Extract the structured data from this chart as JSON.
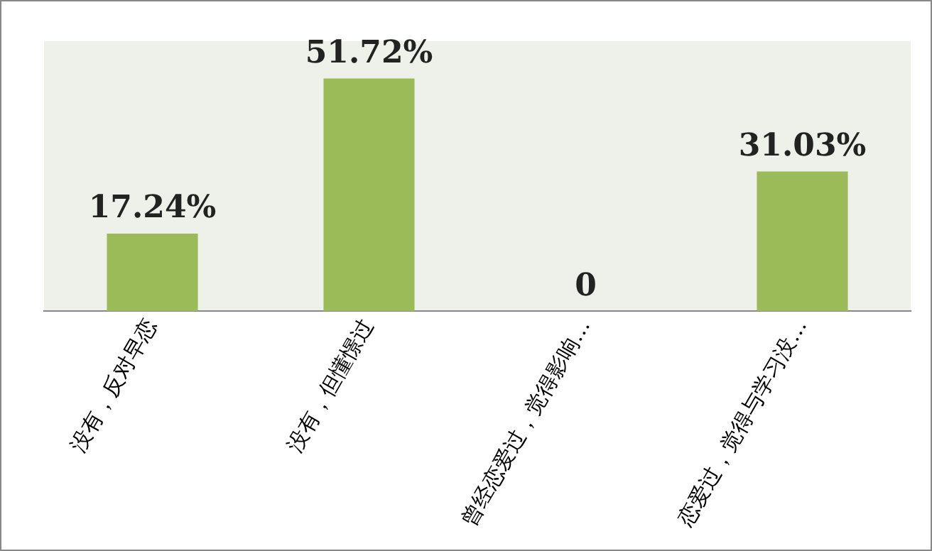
{
  "chart_data": {
    "type": "bar",
    "categories": [
      "没有，反对早恋",
      "没有，但懂憬过",
      "曾经恋爱过，觉得影响…",
      "恋爱过，觉得与学习没…"
    ],
    "values": [
      17.24,
      51.72,
      0,
      31.03
    ],
    "value_labels": [
      "17.24%",
      "51.72%",
      "0",
      "31.03%"
    ],
    "color": "#9bbb59",
    "grid": false,
    "legend": false
  }
}
